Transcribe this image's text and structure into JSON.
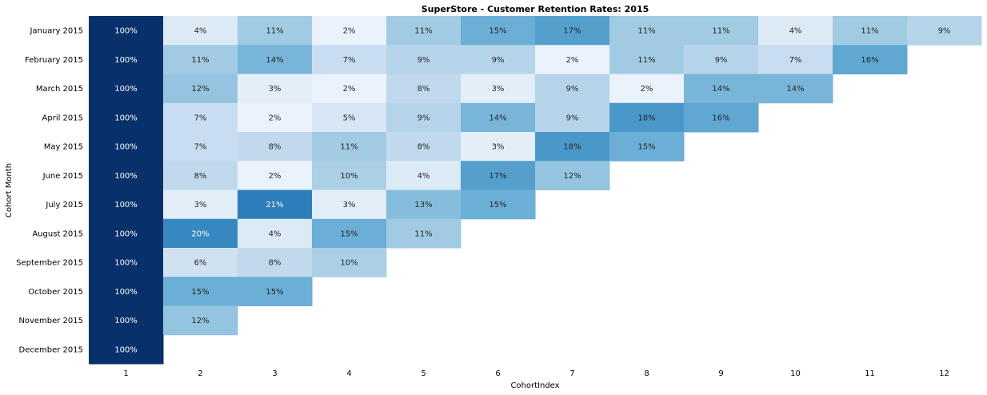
{
  "chart_data": {
    "type": "heatmap",
    "title": "SuperStore - Customer Retention Rates: 2015",
    "xlabel": "CohortIndex",
    "ylabel": "Cohort Month",
    "x_categories": [
      "1",
      "2",
      "3",
      "4",
      "5",
      "6",
      "7",
      "8",
      "9",
      "10",
      "11",
      "12"
    ],
    "y_categories": [
      "January 2015",
      "February 2015",
      "March 2015",
      "April 2015",
      "May 2015",
      "June 2015",
      "July 2015",
      "August 2015",
      "September 2015",
      "October 2015",
      "November 2015",
      "December 2015"
    ],
    "values": [
      [
        100,
        4,
        11,
        2,
        11,
        15,
        17,
        11,
        11,
        4,
        11,
        9
      ],
      [
        100,
        11,
        14,
        7,
        9,
        9,
        2,
        11,
        9,
        7,
        16,
        null
      ],
      [
        100,
        12,
        3,
        2,
        8,
        3,
        9,
        2,
        14,
        14,
        null,
        null
      ],
      [
        100,
        7,
        2,
        5,
        9,
        14,
        9,
        18,
        16,
        null,
        null,
        null
      ],
      [
        100,
        7,
        8,
        11,
        8,
        3,
        18,
        15,
        null,
        null,
        null,
        null
      ],
      [
        100,
        8,
        2,
        10,
        4,
        17,
        12,
        null,
        null,
        null,
        null,
        null
      ],
      [
        100,
        3,
        21,
        3,
        13,
        15,
        null,
        null,
        null,
        null,
        null,
        null
      ],
      [
        100,
        20,
        4,
        15,
        11,
        null,
        null,
        null,
        null,
        null,
        null,
        null
      ],
      [
        100,
        6,
        8,
        10,
        null,
        null,
        null,
        null,
        null,
        null,
        null,
        null
      ],
      [
        100,
        15,
        15,
        null,
        null,
        null,
        null,
        null,
        null,
        null,
        null,
        null
      ],
      [
        100,
        12,
        null,
        null,
        null,
        null,
        null,
        null,
        null,
        null,
        null,
        null
      ],
      [
        100,
        null,
        null,
        null,
        null,
        null,
        null,
        null,
        null,
        null,
        null,
        null
      ]
    ],
    "value_suffix": "%",
    "colormap": "Blues",
    "vmin": 0,
    "vmax": 30,
    "colorbar": false,
    "grid": false
  }
}
